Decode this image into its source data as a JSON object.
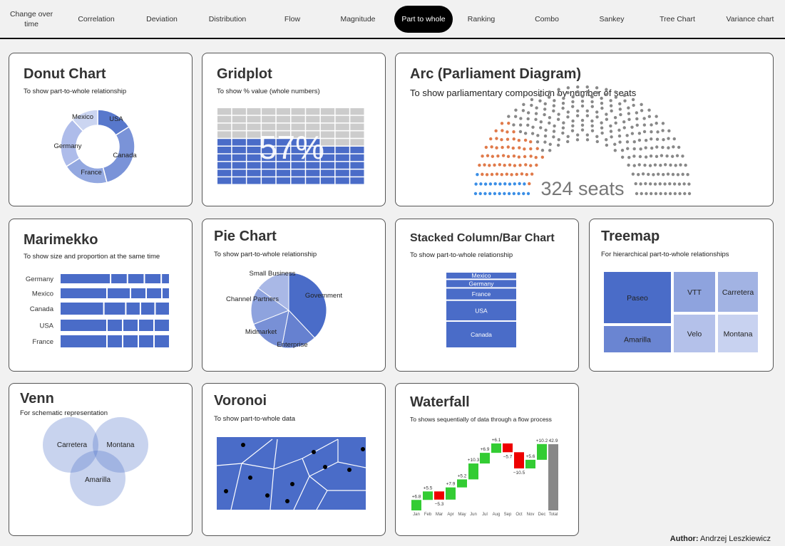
{
  "nav": {
    "items": [
      "Change over time",
      "Correlation",
      "Deviation",
      "Distribution",
      "Flow",
      "Magnitude",
      "Part to whole",
      "Ranking",
      "Combo",
      "Sankey",
      "Tree Chart",
      "Variance chart"
    ],
    "active_index": 6
  },
  "cards": {
    "donut": {
      "title": "Donut Chart",
      "subtitle": "To show part-to-whole relationship"
    },
    "gridplot": {
      "title": "Gridplot",
      "subtitle": "To show % value (whole numbers)"
    },
    "arc": {
      "title": "Arc (Parliament Diagram)",
      "subtitle": "To show parliamentary composition by number of seats"
    },
    "marimekko": {
      "title": "Marimekko",
      "subtitle": "To show size and proportion at the same time"
    },
    "pie": {
      "title": "Pie Chart",
      "subtitle": "To show part-to-whole relationship"
    },
    "stacked": {
      "title": "Stacked Column/Bar Chart",
      "subtitle": "To show part-to-whole relationship"
    },
    "treemap": {
      "title": "Treemap",
      "subtitle": "For hierarchical part-to-whole relationships"
    },
    "venn": {
      "title": "Venn",
      "subtitle": "For schematic representation"
    },
    "voronoi": {
      "title": "Voronoi",
      "subtitle": "To show part-to-whole data"
    },
    "waterfall": {
      "title": "Waterfall",
      "subtitle": "To shows sequentially of data through a flow process"
    }
  },
  "author": {
    "label": "Author:",
    "name": "Andrzej Leszkiewicz"
  },
  "colors": {
    "primary": "#4a6cc8",
    "grid_empty": "#cccccc",
    "seat_grey": "#888888",
    "seat_orange": "#e07a4a",
    "seat_blue": "#3a8ee6",
    "wf_up": "#33cc33",
    "wf_down": "#ee0000",
    "wf_total": "#888888"
  },
  "chart_data": [
    {
      "id": "donut",
      "type": "pie",
      "donut": true,
      "categories": [
        "USA",
        "Canada",
        "France",
        "Germany",
        "Mexico"
      ],
      "values": [
        16,
        30,
        20,
        22,
        12
      ]
    },
    {
      "id": "gridplot",
      "type": "gridplot",
      "value": 57,
      "label": "57%",
      "rows": 10,
      "cols": 10
    },
    {
      "id": "arc",
      "type": "parliament",
      "total": 324,
      "label": "324 seats",
      "parties": [
        {
          "color": "#3a8ee6",
          "seats": 24
        },
        {
          "color": "#e07a4a",
          "seats": 60
        },
        {
          "color": "#888888",
          "seats": 240
        }
      ]
    },
    {
      "id": "marimekko",
      "type": "marimekko",
      "categories": [
        "Germany",
        "Mexico",
        "Canada",
        "USA",
        "France"
      ],
      "segments": [
        [
          6,
          2,
          2,
          2,
          1
        ],
        [
          6,
          3,
          2,
          2,
          1
        ],
        [
          6,
          3,
          2,
          2,
          2
        ],
        [
          6,
          2,
          2,
          2,
          2
        ],
        [
          6,
          2,
          2,
          2,
          2
        ]
      ]
    },
    {
      "id": "pie",
      "type": "pie",
      "categories": [
        "Government",
        "Enterprise",
        "Midmarket",
        "Channel Partners",
        "Small Business"
      ],
      "values": [
        38,
        15,
        16,
        16,
        15
      ]
    },
    {
      "id": "stacked",
      "type": "bar",
      "stacked": true,
      "categories": [
        "Mexico",
        "Germany",
        "France",
        "USA",
        "Canada"
      ],
      "values": [
        6,
        7,
        10,
        17,
        22
      ]
    },
    {
      "id": "treemap",
      "type": "treemap",
      "categories": [
        "Paseo",
        "Amarilla",
        "VTT",
        "Velo",
        "Carretera",
        "Montana"
      ]
    },
    {
      "id": "venn",
      "type": "venn",
      "sets": [
        "Carretera",
        "Montana",
        "Amarilla"
      ]
    },
    {
      "id": "voronoi",
      "type": "voronoi"
    },
    {
      "id": "waterfall",
      "type": "waterfall",
      "categories": [
        "Jan",
        "Feb",
        "Mar",
        "Apr",
        "May",
        "Jun",
        "Jul",
        "Aug",
        "Sep",
        "Oct",
        "Nov",
        "Dec",
        "Total"
      ],
      "values": [
        6.8,
        5.5,
        -5.3,
        7.9,
        5.2,
        10.3,
        6.9,
        6.1,
        -5.7,
        -10.5,
        5.6,
        10.2,
        42.9
      ],
      "labels": [
        "+6.8",
        "+5.5",
        "−5.3",
        "+7.9",
        "+5.2",
        "+10.3",
        "+6.9",
        "+6.1",
        "−5.7",
        "−10.5",
        "+5.6",
        "+10.2",
        "42.9"
      ]
    }
  ]
}
